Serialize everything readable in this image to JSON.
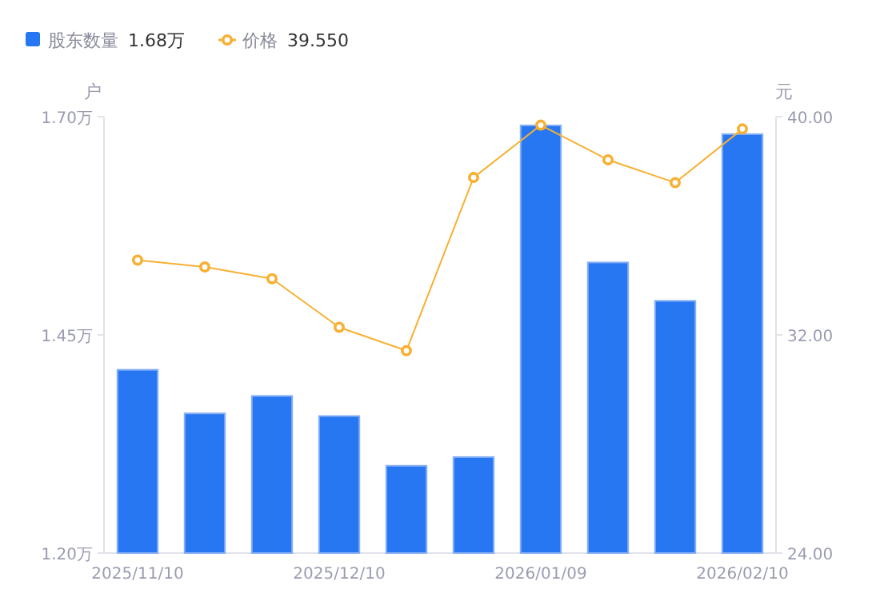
{
  "chart_data": {
    "type": "bar",
    "categories": [
      "2025/11/10",
      null,
      null,
      "2025/12/10",
      null,
      null,
      "2026/01/09",
      null,
      null,
      "2026/02/10"
    ],
    "series": [
      {
        "name": "股东数量",
        "color": "#2777f2",
        "values": [
          1.41,
          1.36,
          1.38,
          1.357,
          1.3,
          1.31,
          1.69,
          1.533,
          1.489,
          1.68
        ]
      },
      {
        "name": "价格",
        "type": "line",
        "axis": "y2",
        "marker": "circle",
        "color": "#f7b032",
        "values": [
          34.74,
          34.49,
          34.06,
          32.28,
          31.42,
          37.77,
          39.69,
          38.42,
          37.58,
          39.55
        ]
      }
    ],
    "ylabel": "户",
    "y2label": "元",
    "ylim": [
      1.2,
      1.7
    ],
    "yticks": [
      {
        "value": 1.2,
        "label": "1.20万"
      },
      {
        "value": 1.45,
        "label": "1.45万"
      },
      {
        "value": 1.7,
        "label": "1.70万"
      }
    ],
    "y2lim": [
      24,
      40
    ],
    "y2ticks": [
      {
        "value": 24,
        "label": "24.00"
      },
      {
        "value": 32,
        "label": "32.00"
      },
      {
        "value": 40,
        "label": "40.00"
      }
    ],
    "legend": "top left",
    "annotations": [
      "1.68万",
      "39.550"
    ]
  }
}
